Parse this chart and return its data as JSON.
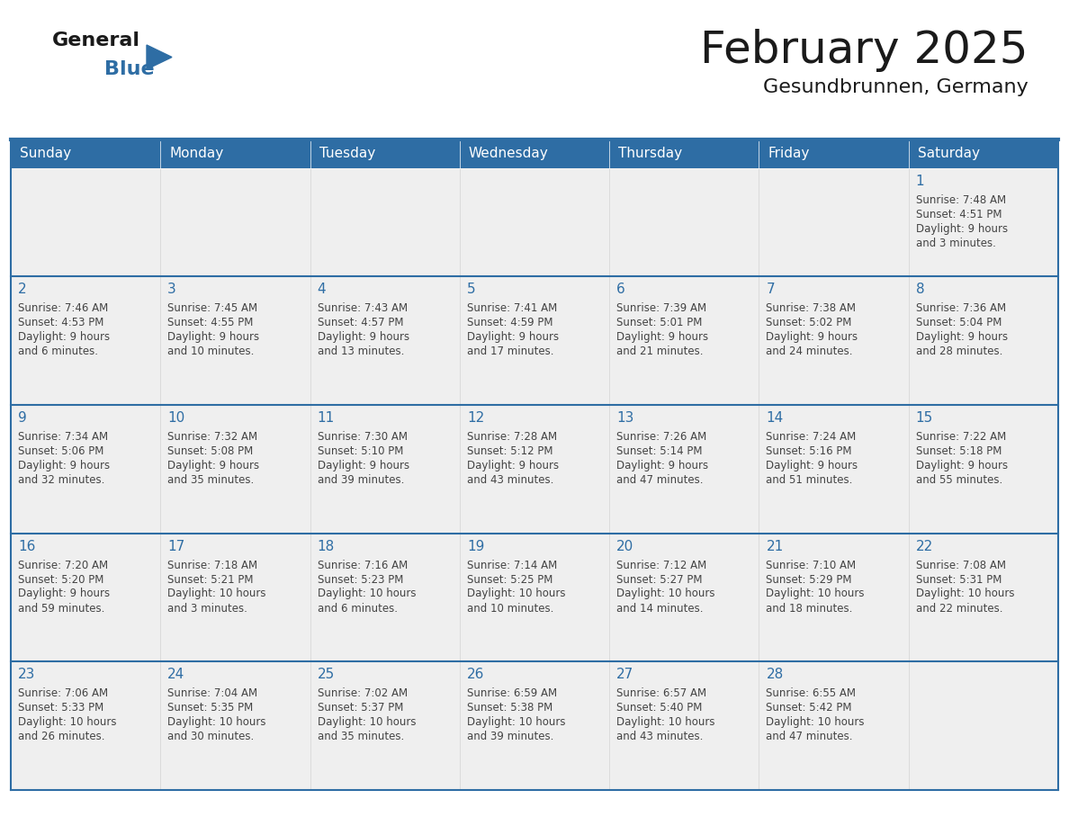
{
  "title": "February 2025",
  "subtitle": "Gesundbrunnen, Germany",
  "days_of_week": [
    "Sunday",
    "Monday",
    "Tuesday",
    "Wednesday",
    "Thursday",
    "Friday",
    "Saturday"
  ],
  "header_bg": "#2E6DA4",
  "header_text": "#FFFFFF",
  "cell_bg": "#EFEFEF",
  "cell_bg_white": "#FFFFFF",
  "border_color": "#2E6DA4",
  "row_divider_color": "#2E6DA4",
  "day_number_color": "#2E6DA4",
  "text_color": "#444444",
  "calendar_data": [
    [
      null,
      null,
      null,
      null,
      null,
      null,
      {
        "day": 1,
        "sunrise": "7:48 AM",
        "sunset": "4:51 PM",
        "daylight": "9 hours",
        "daylight2": "and 3 minutes."
      }
    ],
    [
      {
        "day": 2,
        "sunrise": "7:46 AM",
        "sunset": "4:53 PM",
        "daylight": "9 hours",
        "daylight2": "and 6 minutes."
      },
      {
        "day": 3,
        "sunrise": "7:45 AM",
        "sunset": "4:55 PM",
        "daylight": "9 hours",
        "daylight2": "and 10 minutes."
      },
      {
        "day": 4,
        "sunrise": "7:43 AM",
        "sunset": "4:57 PM",
        "daylight": "9 hours",
        "daylight2": "and 13 minutes."
      },
      {
        "day": 5,
        "sunrise": "7:41 AM",
        "sunset": "4:59 PM",
        "daylight": "9 hours",
        "daylight2": "and 17 minutes."
      },
      {
        "day": 6,
        "sunrise": "7:39 AM",
        "sunset": "5:01 PM",
        "daylight": "9 hours",
        "daylight2": "and 21 minutes."
      },
      {
        "day": 7,
        "sunrise": "7:38 AM",
        "sunset": "5:02 PM",
        "daylight": "9 hours",
        "daylight2": "and 24 minutes."
      },
      {
        "day": 8,
        "sunrise": "7:36 AM",
        "sunset": "5:04 PM",
        "daylight": "9 hours",
        "daylight2": "and 28 minutes."
      }
    ],
    [
      {
        "day": 9,
        "sunrise": "7:34 AM",
        "sunset": "5:06 PM",
        "daylight": "9 hours",
        "daylight2": "and 32 minutes."
      },
      {
        "day": 10,
        "sunrise": "7:32 AM",
        "sunset": "5:08 PM",
        "daylight": "9 hours",
        "daylight2": "and 35 minutes."
      },
      {
        "day": 11,
        "sunrise": "7:30 AM",
        "sunset": "5:10 PM",
        "daylight": "9 hours",
        "daylight2": "and 39 minutes."
      },
      {
        "day": 12,
        "sunrise": "7:28 AM",
        "sunset": "5:12 PM",
        "daylight": "9 hours",
        "daylight2": "and 43 minutes."
      },
      {
        "day": 13,
        "sunrise": "7:26 AM",
        "sunset": "5:14 PM",
        "daylight": "9 hours",
        "daylight2": "and 47 minutes."
      },
      {
        "day": 14,
        "sunrise": "7:24 AM",
        "sunset": "5:16 PM",
        "daylight": "9 hours",
        "daylight2": "and 51 minutes."
      },
      {
        "day": 15,
        "sunrise": "7:22 AM",
        "sunset": "5:18 PM",
        "daylight": "9 hours",
        "daylight2": "and 55 minutes."
      }
    ],
    [
      {
        "day": 16,
        "sunrise": "7:20 AM",
        "sunset": "5:20 PM",
        "daylight": "9 hours",
        "daylight2": "and 59 minutes."
      },
      {
        "day": 17,
        "sunrise": "7:18 AM",
        "sunset": "5:21 PM",
        "daylight": "10 hours",
        "daylight2": "and 3 minutes."
      },
      {
        "day": 18,
        "sunrise": "7:16 AM",
        "sunset": "5:23 PM",
        "daylight": "10 hours",
        "daylight2": "and 6 minutes."
      },
      {
        "day": 19,
        "sunrise": "7:14 AM",
        "sunset": "5:25 PM",
        "daylight": "10 hours",
        "daylight2": "and 10 minutes."
      },
      {
        "day": 20,
        "sunrise": "7:12 AM",
        "sunset": "5:27 PM",
        "daylight": "10 hours",
        "daylight2": "and 14 minutes."
      },
      {
        "day": 21,
        "sunrise": "7:10 AM",
        "sunset": "5:29 PM",
        "daylight": "10 hours",
        "daylight2": "and 18 minutes."
      },
      {
        "day": 22,
        "sunrise": "7:08 AM",
        "sunset": "5:31 PM",
        "daylight": "10 hours",
        "daylight2": "and 22 minutes."
      }
    ],
    [
      {
        "day": 23,
        "sunrise": "7:06 AM",
        "sunset": "5:33 PM",
        "daylight": "10 hours",
        "daylight2": "and 26 minutes."
      },
      {
        "day": 24,
        "sunrise": "7:04 AM",
        "sunset": "5:35 PM",
        "daylight": "10 hours",
        "daylight2": "and 30 minutes."
      },
      {
        "day": 25,
        "sunrise": "7:02 AM",
        "sunset": "5:37 PM",
        "daylight": "10 hours",
        "daylight2": "and 35 minutes."
      },
      {
        "day": 26,
        "sunrise": "6:59 AM",
        "sunset": "5:38 PM",
        "daylight": "10 hours",
        "daylight2": "and 39 minutes."
      },
      {
        "day": 27,
        "sunrise": "6:57 AM",
        "sunset": "5:40 PM",
        "daylight": "10 hours",
        "daylight2": "and 43 minutes."
      },
      {
        "day": 28,
        "sunrise": "6:55 AM",
        "sunset": "5:42 PM",
        "daylight": "10 hours",
        "daylight2": "and 47 minutes."
      },
      null
    ]
  ],
  "logo_color1": "#1a1a1a",
  "logo_color2": "#2E6DA4",
  "logo_triangle_color": "#2E6DA4",
  "figsize": [
    11.88,
    9.18
  ],
  "dpi": 100
}
